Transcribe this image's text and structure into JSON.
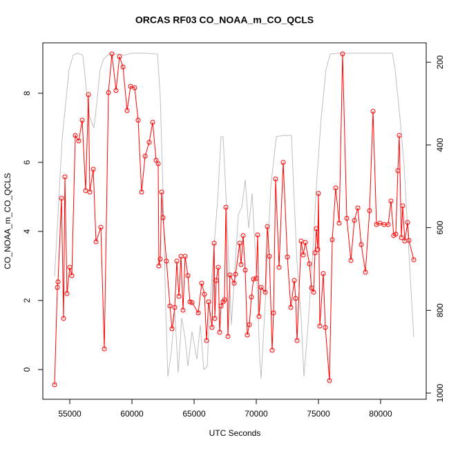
{
  "chart_data": {
    "type": "line",
    "title": "ORCAS RF03 CO_NOAA_m_CO_QCLS",
    "xlabel": "UTC Seconds",
    "ylabel": "CO_NOAA_m_CO_QCLS",
    "xlim": [
      52833,
      83667
    ],
    "xticks": [
      55000,
      60000,
      65000,
      70000,
      75000,
      80000
    ],
    "ylim": [
      -0.86,
      9.46
    ],
    "yticks": [
      0,
      2,
      4,
      6,
      8
    ],
    "y2lim": [
      1015,
      153
    ],
    "y2ticks": [
      200,
      400,
      600,
      800,
      1000
    ],
    "series": [
      {
        "color": "#bebebe",
        "axis": "y2",
        "marker": "none",
        "x": [
          53778,
          54056,
          54389,
          54667,
          54944,
          55278,
          55611,
          56056,
          56389,
          56611,
          56944,
          57167,
          57444,
          57722,
          58167,
          58833,
          59389,
          59944,
          61056,
          62056,
          62278,
          62500,
          62722,
          62889,
          63167,
          63444,
          63722,
          64000,
          64278,
          64500,
          64833,
          65222,
          65500,
          65778,
          66056,
          66222,
          66500,
          66889,
          67167,
          67333,
          67611,
          68000,
          68278,
          68556,
          68833,
          69111,
          69389,
          69667,
          70056,
          70278,
          70389,
          70778,
          71167,
          71611,
          72167,
          72833,
          73000,
          73278,
          73611,
          73833,
          74167,
          74500,
          74833,
          75222,
          75611,
          75944,
          76611,
          77167,
          78278,
          79389,
          80944,
          81167,
          81611,
          81889,
          82167,
          82444,
          82667
        ],
        "values": [
          718,
          567,
          384,
          300,
          217,
          183,
          178,
          183,
          283,
          334,
          359,
          300,
          217,
          192,
          180,
          180,
          183,
          178,
          178,
          180,
          283,
          517,
          801,
          960,
          901,
          801,
          951,
          818,
          868,
          935,
          851,
          918,
          835,
          943,
          935,
          818,
          684,
          534,
          380,
          380,
          551,
          835,
          701,
          567,
          551,
          484,
          601,
          517,
          734,
          918,
          965,
          751,
          501,
          380,
          377,
          377,
          501,
          684,
          818,
          960,
          835,
          684,
          501,
          334,
          217,
          180,
          178,
          178,
          178,
          178,
          178,
          217,
          351,
          451,
          601,
          751,
          864
        ]
      },
      {
        "color": "#ff0000",
        "marker": "circle",
        "x": [
          53778,
          54000,
          54056,
          54333,
          54500,
          54611,
          54778,
          55000,
          55167,
          55444,
          55722,
          56000,
          56278,
          56500,
          56611,
          56889,
          57111,
          57500,
          57778,
          58111,
          58389,
          58722,
          59000,
          59278,
          59611,
          59889,
          60222,
          60500,
          60778,
          61056,
          61389,
          61667,
          61944,
          62111,
          62167,
          62278,
          62389,
          62500,
          62778,
          63056,
          63222,
          63444,
          63611,
          63778,
          63944,
          64111,
          64278,
          64500,
          64667,
          64833,
          65333,
          65611,
          65833,
          66000,
          66167,
          66444,
          66611,
          66667,
          66778,
          66944,
          67056,
          67167,
          67333,
          67444,
          67556,
          67722,
          67889,
          68222,
          68333,
          68667,
          68778,
          68944,
          69111,
          69278,
          69444,
          69611,
          69778,
          70000,
          70111,
          70222,
          70389,
          70722,
          70889,
          71056,
          71278,
          71389,
          71556,
          71833,
          72167,
          72500,
          72778,
          73056,
          73167,
          73278,
          73611,
          73778,
          73944,
          74278,
          74444,
          74611,
          74722,
          74833,
          74944,
          75000,
          75111,
          75389,
          75556,
          75889,
          76111,
          76389,
          76667,
          76944,
          77278,
          77611,
          77889,
          78167,
          78444,
          78778,
          79111,
          79389,
          79667,
          79944,
          80278,
          80611,
          80833,
          81056,
          81222,
          81389,
          81500,
          81667,
          81778,
          81944,
          82167,
          82278,
          82667
        ],
        "values": [
          -0.44,
          2.38,
          2.54,
          4.96,
          1.48,
          5.58,
          2.2,
          2.96,
          2.72,
          6.78,
          6.62,
          7.22,
          5.18,
          7.96,
          5.14,
          5.8,
          3.7,
          4.12,
          0.6,
          8.02,
          9.14,
          8.08,
          9.06,
          8.76,
          7.5,
          8.2,
          8.16,
          7.22,
          5.14,
          6.18,
          6.58,
          7.16,
          6.06,
          5.96,
          3.0,
          3.2,
          5.14,
          4.4,
          3.14,
          1.84,
          1.18,
          1.8,
          3.14,
          2.12,
          3.28,
          1.72,
          3.28,
          2.72,
          1.96,
          1.94,
          1.64,
          2.5,
          2.18,
          0.84,
          1.96,
          1.22,
          3.66,
          1.48,
          2.58,
          2.96,
          1.08,
          1.84,
          1.96,
          2.02,
          4.7,
          0.96,
          2.74,
          2.5,
          2.76,
          3.66,
          3.04,
          3.88,
          2.88,
          1.0,
          1.3,
          2.1,
          2.62,
          2.64,
          3.9,
          1.54,
          2.38,
          2.24,
          4.14,
          3.28,
          0.56,
          1.64,
          5.52,
          2.96,
          6.0,
          3.26,
          1.8,
          2.58,
          2.06,
          0.84,
          3.72,
          3.32,
          3.68,
          3.06,
          2.36,
          2.24,
          3.38,
          4.08,
          3.48,
          5.1,
          1.26,
          2.78,
          1.22,
          -0.32,
          3.76,
          5.26,
          4.24,
          9.14,
          4.38,
          3.16,
          4.32,
          4.68,
          3.62,
          2.82,
          4.6,
          7.48,
          4.2,
          4.24,
          4.2,
          4.2,
          4.88,
          3.88,
          3.92,
          5.76,
          6.78,
          3.82,
          4.74,
          3.72,
          4.26,
          3.74,
          3.18
        ]
      }
    ]
  }
}
